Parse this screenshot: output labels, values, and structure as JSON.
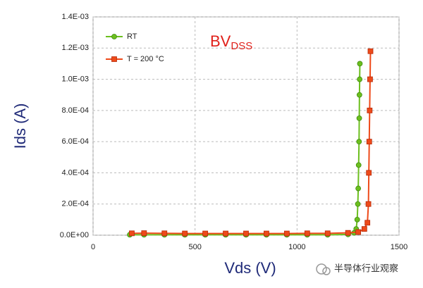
{
  "chart_data": {
    "type": "scatter",
    "annotation": {
      "text": "BV",
      "subscript": "DSS"
    },
    "x_label": "Vds (V)",
    "y_label": "Ids (A)",
    "watermark": "半导体行业观察",
    "xlim": [
      0,
      1500
    ],
    "xticks": [
      0,
      500,
      1000,
      1500
    ],
    "ylim": [
      0,
      0.0014
    ],
    "yticks": [
      {
        "value": 0,
        "label": "0.0E+00"
      },
      {
        "value": 0.0002,
        "label": "2.0E-04"
      },
      {
        "value": 0.0004,
        "label": "4.0E-04"
      },
      {
        "value": 0.0006,
        "label": "6.0E-04"
      },
      {
        "value": 0.0008,
        "label": "8.0E-04"
      },
      {
        "value": 0.001,
        "label": "1.0E-03"
      },
      {
        "value": 0.0012,
        "label": "1.2E-03"
      },
      {
        "value": 0.0014,
        "label": "1.4E-03"
      }
    ],
    "grid": true,
    "legend": "upper left",
    "series": [
      {
        "name": "RT",
        "color": "#6cbf1e",
        "marker": "circle",
        "x": [
          180,
          250,
          350,
          450,
          550,
          650,
          750,
          850,
          950,
          1050,
          1150,
          1250,
          1280,
          1290,
          1295,
          1298,
          1300,
          1302,
          1304,
          1305,
          1306,
          1307,
          1308
        ],
        "values": [
          3e-06,
          3e-06,
          3e-06,
          3e-06,
          3e-06,
          3e-06,
          3e-06,
          3e-06,
          3e-06,
          3e-06,
          3e-06,
          5e-06,
          1.5e-05,
          4e-05,
          0.0001,
          0.0002,
          0.0003,
          0.00045,
          0.0006,
          0.00075,
          0.0009,
          0.001,
          0.0011
        ]
      },
      {
        "name": "T = 200 °C",
        "color": "#ee4a1a",
        "marker": "square",
        "x": [
          190,
          250,
          350,
          450,
          550,
          650,
          750,
          850,
          950,
          1050,
          1150,
          1250,
          1300,
          1330,
          1345,
          1350,
          1352,
          1354,
          1356,
          1358,
          1360
        ],
        "values": [
          1.2e-05,
          1.3e-05,
          1.2e-05,
          1.1e-05,
          1.1e-05,
          1.1e-05,
          1.1e-05,
          1.1e-05,
          1.1e-05,
          1.2e-05,
          1.2e-05,
          1.5e-05,
          2e-05,
          4e-05,
          8e-05,
          0.0002,
          0.0004,
          0.0006,
          0.0008,
          0.001,
          0.00118
        ]
      }
    ]
  }
}
